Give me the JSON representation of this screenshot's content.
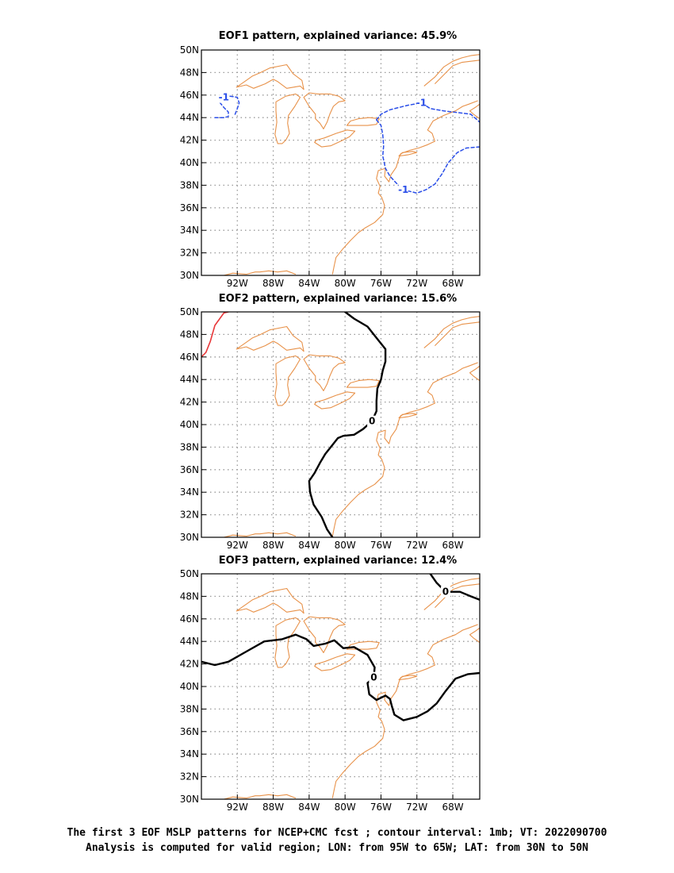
{
  "colors": {
    "coast": "#e8924a",
    "grid": "#9a9a9a",
    "negative_contour": "#2a4ee8",
    "positive_contour": "#e8383a",
    "zero_contour": "#000000"
  },
  "map_domain": {
    "lon_min": -96,
    "lon_max": -65,
    "lat_min": 30,
    "lat_max": 50
  },
  "grid_lons": [
    -92,
    -88,
    -84,
    -80,
    -76,
    -72,
    -68
  ],
  "grid_lats": [
    32,
    34,
    36,
    38,
    40,
    42,
    44,
    46,
    48
  ],
  "lon_tick_labels": [
    "92W",
    "88W",
    "84W",
    "80W",
    "76W",
    "72W",
    "68W"
  ],
  "lat_tick_labels": [
    "30N",
    "32N",
    "34N",
    "36N",
    "38N",
    "40N",
    "42N",
    "44N",
    "46N",
    "48N",
    "50N"
  ],
  "panels": [
    {
      "id": "eof1",
      "title": "EOF1 pattern, explained variance: 45.9%",
      "contours": [
        {
          "kind": "negative",
          "label": "-1",
          "points": [
            [
              -94.5,
              44
            ],
            [
              -93.5,
              44
            ],
            [
              -93,
              44.1
            ],
            [
              -93,
              44.5
            ],
            [
              -93.5,
              44.9
            ],
            [
              -94,
              45.4
            ],
            [
              -93.5,
              45.8
            ],
            [
              -92.8,
              45.9
            ],
            [
              -92,
              45.8
            ],
            [
              -91.8,
              45.3
            ],
            [
              -92,
              44.8
            ],
            [
              -92.3,
              44.2
            ]
          ]
        },
        {
          "kind": "negative",
          "label": "-1",
          "points": [
            [
              -76.5,
              43.8
            ],
            [
              -76,
              44.3
            ],
            [
              -75,
              44.7
            ],
            [
              -73,
              45.1
            ],
            [
              -71.5,
              45.3
            ],
            [
              -70.5,
              44.8
            ],
            [
              -69,
              44.6
            ],
            [
              -66,
              44.3
            ],
            [
              -65,
              43.6
            ]
          ]
        },
        {
          "kind": "negative",
          "label": "-1",
          "points": [
            [
              -76.5,
              43.8
            ],
            [
              -76,
              43.3
            ],
            [
              -75.8,
              42.5
            ],
            [
              -75.7,
              41.5
            ],
            [
              -75.8,
              40.6
            ],
            [
              -75.5,
              39.5
            ],
            [
              -75,
              38.8
            ],
            [
              -74.3,
              38.2
            ],
            [
              -73.5,
              37.6
            ],
            [
              -72,
              37.3
            ],
            [
              -71,
              37.6
            ],
            [
              -70,
              38.1
            ],
            [
              -69.2,
              39.0
            ],
            [
              -68.5,
              40.0
            ],
            [
              -67.5,
              40.9
            ],
            [
              -66.5,
              41.3
            ],
            [
              -65,
              41.4
            ]
          ]
        }
      ]
    },
    {
      "id": "eof2",
      "title": "EOF2 pattern, explained variance: 15.6%",
      "contours": [
        {
          "kind": "positive",
          "label": "",
          "points": [
            [
              -96,
              46
            ],
            [
              -95.5,
              46.4
            ],
            [
              -95,
              47.4
            ],
            [
              -94.5,
              48.8
            ],
            [
              -93.5,
              49.9
            ],
            [
              -93,
              50
            ]
          ]
        },
        {
          "kind": "zero",
          "label": "0",
          "points": [
            [
              -80,
              50
            ],
            [
              -79,
              49.4
            ],
            [
              -77.5,
              48.7
            ],
            [
              -76.5,
              47.7
            ],
            [
              -75.5,
              46.7
            ],
            [
              -75.5,
              45.6
            ],
            [
              -75.8,
              44.8
            ],
            [
              -76,
              44
            ],
            [
              -76.4,
              43.2
            ],
            [
              -76.5,
              42.1
            ],
            [
              -76.5,
              41.2
            ],
            [
              -77,
              40.3
            ],
            [
              -78,
              39.6
            ],
            [
              -79,
              39.1
            ],
            [
              -80.2,
              39.0
            ],
            [
              -80.8,
              38.8
            ],
            [
              -81.5,
              38.1
            ],
            [
              -82.2,
              37.4
            ],
            [
              -82.8,
              36.6
            ],
            [
              -83.4,
              35.7
            ],
            [
              -84,
              35.0
            ],
            [
              -83.9,
              34.0
            ],
            [
              -83.5,
              32.9
            ],
            [
              -82.6,
              31.8
            ],
            [
              -82,
              30.7
            ],
            [
              -81.4,
              30
            ]
          ]
        }
      ]
    },
    {
      "id": "eof3",
      "title": "EOF3 pattern, explained variance: 12.4%",
      "contours": [
        {
          "kind": "zero",
          "label": "0",
          "points": [
            [
              -96,
              42.2
            ],
            [
              -94.5,
              41.9
            ],
            [
              -93,
              42.2
            ],
            [
              -91,
              43.1
            ],
            [
              -89,
              44.0
            ],
            [
              -87,
              44.2
            ],
            [
              -85.5,
              44.6
            ],
            [
              -84.3,
              44.2
            ],
            [
              -83.5,
              43.6
            ],
            [
              -82.2,
              43.8
            ],
            [
              -81.2,
              44.1
            ],
            [
              -80.2,
              43.4
            ],
            [
              -79,
              43.5
            ],
            [
              -77.5,
              42.8
            ],
            [
              -76.7,
              41.7
            ],
            [
              -76.8,
              40.8
            ],
            [
              -77.5,
              40.3
            ],
            [
              -77.3,
              39.3
            ],
            [
              -76.5,
              38.8
            ],
            [
              -75.5,
              39.2
            ],
            [
              -75,
              38.9
            ],
            [
              -74.8,
              38.3
            ],
            [
              -74.5,
              37.5
            ],
            [
              -73.5,
              37.0
            ],
            [
              -72,
              37.3
            ],
            [
              -70.8,
              37.8
            ],
            [
              -69.8,
              38.5
            ],
            [
              -68.8,
              39.6
            ],
            [
              -67.7,
              40.7
            ],
            [
              -66.3,
              41.1
            ],
            [
              -65,
              41.2
            ]
          ]
        },
        {
          "kind": "zero",
          "label": "0",
          "points": [
            [
              -70.5,
              50
            ],
            [
              -69.8,
              49.2
            ],
            [
              -68.8,
              48.4
            ],
            [
              -67.2,
              48.4
            ],
            [
              -66,
              48.0
            ],
            [
              -65,
              47.7
            ]
          ]
        }
      ]
    }
  ],
  "coastlines": [
    {
      "name": "lake-superior",
      "closed": true,
      "points": [
        [
          -92.1,
          46.7
        ],
        [
          -91.0,
          46.9
        ],
        [
          -90.2,
          46.6
        ],
        [
          -88.9,
          47.0
        ],
        [
          -88.0,
          47.4
        ],
        [
          -87.5,
          47.2
        ],
        [
          -86.5,
          46.6
        ],
        [
          -85.0,
          46.8
        ],
        [
          -84.6,
          46.5
        ],
        [
          -84.8,
          47.3
        ],
        [
          -85.8,
          47.9
        ],
        [
          -86.5,
          48.7
        ],
        [
          -88.4,
          48.4
        ],
        [
          -89.4,
          48.0
        ],
        [
          -90.3,
          47.7
        ],
        [
          -91.0,
          47.3
        ],
        [
          -91.9,
          46.8
        ]
      ]
    },
    {
      "name": "lake-michigan",
      "closed": true,
      "points": [
        [
          -87.5,
          41.7
        ],
        [
          -87.0,
          41.7
        ],
        [
          -86.6,
          42.0
        ],
        [
          -86.2,
          42.6
        ],
        [
          -86.4,
          43.5
        ],
        [
          -86.3,
          44.2
        ],
        [
          -85.6,
          45.0
        ],
        [
          -85.0,
          45.8
        ],
        [
          -85.5,
          46.1
        ],
        [
          -86.6,
          45.9
        ],
        [
          -87.7,
          45.4
        ],
        [
          -87.7,
          44.6
        ],
        [
          -87.6,
          43.6
        ],
        [
          -87.8,
          42.5
        ]
      ]
    },
    {
      "name": "lake-huron",
      "closed": true,
      "points": [
        [
          -82.4,
          43.0
        ],
        [
          -82.0,
          43.6
        ],
        [
          -81.7,
          44.3
        ],
        [
          -81.3,
          45.0
        ],
        [
          -80.7,
          45.4
        ],
        [
          -80.0,
          45.5
        ],
        [
          -80.7,
          45.9
        ],
        [
          -81.7,
          46.1
        ],
        [
          -83.0,
          46.1
        ],
        [
          -84.0,
          46.2
        ],
        [
          -84.6,
          45.8
        ],
        [
          -84.0,
          45.0
        ],
        [
          -83.3,
          44.3
        ],
        [
          -83.3,
          43.9
        ],
        [
          -82.8,
          43.5
        ]
      ]
    },
    {
      "name": "lake-erie",
      "closed": true,
      "points": [
        [
          -83.4,
          41.8
        ],
        [
          -82.6,
          41.4
        ],
        [
          -81.6,
          41.5
        ],
        [
          -80.5,
          41.9
        ],
        [
          -79.5,
          42.3
        ],
        [
          -78.9,
          42.8
        ],
        [
          -79.8,
          42.9
        ],
        [
          -81.0,
          42.6
        ],
        [
          -82.3,
          42.2
        ],
        [
          -83.2,
          42.0
        ]
      ]
    },
    {
      "name": "lake-ontario",
      "closed": true,
      "points": [
        [
          -79.8,
          43.3
        ],
        [
          -78.8,
          43.3
        ],
        [
          -77.5,
          43.3
        ],
        [
          -76.5,
          43.4
        ],
        [
          -76.2,
          43.9
        ],
        [
          -77.3,
          44.0
        ],
        [
          -78.5,
          43.9
        ],
        [
          -79.4,
          43.7
        ]
      ]
    },
    {
      "name": "east-coast",
      "closed": false,
      "points": [
        [
          -81.4,
          30.1
        ],
        [
          -81.2,
          30.9
        ],
        [
          -81.0,
          31.6
        ],
        [
          -80.3,
          32.3
        ],
        [
          -79.4,
          33.1
        ],
        [
          -78.5,
          33.8
        ],
        [
          -77.8,
          34.2
        ],
        [
          -76.7,
          34.7
        ],
        [
          -75.8,
          35.4
        ],
        [
          -75.6,
          36.2
        ],
        [
          -75.9,
          36.9
        ],
        [
          -76.3,
          37.3
        ],
        [
          -76.1,
          37.9
        ],
        [
          -76.5,
          38.6
        ],
        [
          -76.3,
          39.3
        ],
        [
          -75.5,
          39.5
        ],
        [
          -75.6,
          38.8
        ],
        [
          -75.1,
          38.3
        ],
        [
          -74.9,
          38.9
        ],
        [
          -74.3,
          39.6
        ],
        [
          -74.0,
          40.4
        ],
        [
          -73.8,
          40.8
        ],
        [
          -72.8,
          41.1
        ],
        [
          -71.8,
          41.3
        ],
        [
          -70.8,
          41.6
        ],
        [
          -70.0,
          41.9
        ],
        [
          -70.3,
          42.6
        ],
        [
          -70.8,
          42.9
        ],
        [
          -70.2,
          43.7
        ],
        [
          -69.0,
          44.2
        ],
        [
          -67.7,
          44.6
        ],
        [
          -66.9,
          45.0
        ],
        [
          -66.2,
          45.2
        ],
        [
          -65.2,
          45.5
        ]
      ]
    },
    {
      "name": "long-island",
      "closed": true,
      "points": [
        [
          -74.0,
          40.6
        ],
        [
          -73.0,
          40.7
        ],
        [
          -72.0,
          40.9
        ],
        [
          -72.5,
          41.0
        ],
        [
          -73.6,
          40.9
        ]
      ]
    },
    {
      "name": "nova-scotia",
      "closed": false,
      "points": [
        [
          -65,
          43.9
        ],
        [
          -65.7,
          44.3
        ],
        [
          -66.1,
          44.6
        ],
        [
          -65.5,
          44.9
        ],
        [
          -65,
          45.2
        ]
      ]
    },
    {
      "name": "st-lawrence-north",
      "closed": false,
      "points": [
        [
          -71.2,
          46.8
        ],
        [
          -70.0,
          47.6
        ],
        [
          -69.0,
          48.5
        ],
        [
          -68.0,
          49.0
        ],
        [
          -67.0,
          49.3
        ],
        [
          -66.0,
          49.5
        ],
        [
          -65,
          49.6
        ]
      ]
    },
    {
      "name": "st-lawrence-south",
      "closed": false,
      "points": [
        [
          -70.0,
          47.0
        ],
        [
          -69.0,
          47.8
        ],
        [
          -68.0,
          48.6
        ],
        [
          -67.0,
          48.9
        ],
        [
          -66.0,
          49.0
        ],
        [
          -65,
          49.1
        ]
      ]
    },
    {
      "name": "gulf-coast",
      "closed": false,
      "points": [
        [
          -93.5,
          30
        ],
        [
          -92.5,
          30.2
        ],
        [
          -91.0,
          30.1
        ],
        [
          -90.0,
          30.3
        ],
        [
          -89.5,
          30.3
        ],
        [
          -88.5,
          30.4
        ],
        [
          -87.5,
          30.3
        ],
        [
          -86.5,
          30.4
        ],
        [
          -85.5,
          30.1
        ]
      ]
    }
  ],
  "caption": {
    "line1": "The first 3 EOF MSLP patterns for NCEP+CMC fcst ; contour interval: 1mb; VT: 2022090700",
    "line2": "Analysis is computed for valid region; LON: from 95W to 65W; LAT: from 30N to 50N"
  }
}
